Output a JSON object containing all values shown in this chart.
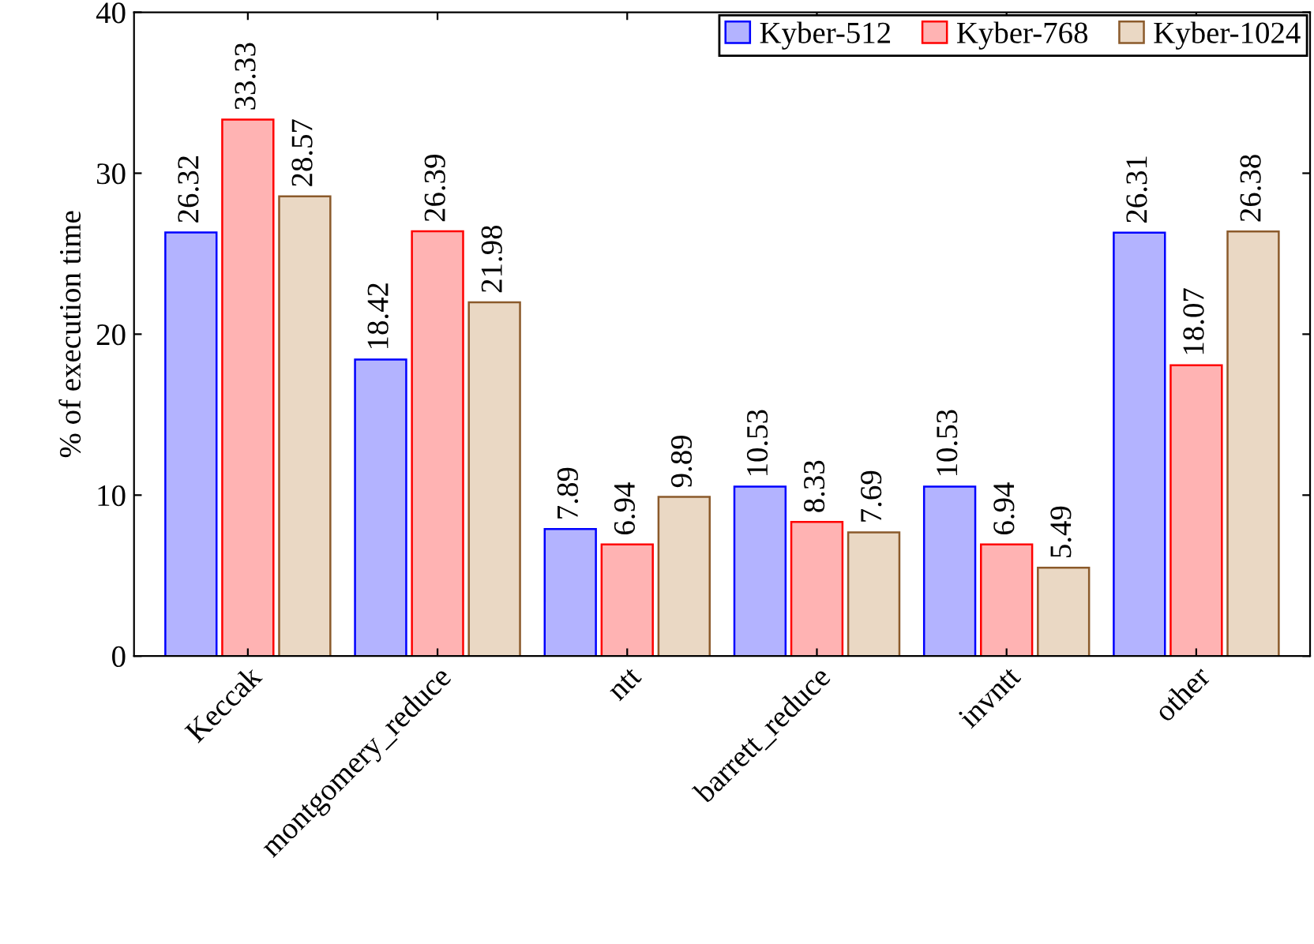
{
  "chart_data": {
    "type": "bar",
    "ylabel": "% of execution time",
    "categories": [
      "Keccak",
      "montgomery_reduce",
      "ntt",
      "barrett_reduce",
      "invntt",
      "other"
    ],
    "series": [
      {
        "name": "Kyber-512",
        "color": "#b3b3ff",
        "values": [
          26.32,
          18.42,
          7.89,
          10.53,
          10.53,
          26.31
        ]
      },
      {
        "name": "Kyber-768",
        "color": "#ffb3b3",
        "values": [
          33.33,
          26.39,
          6.94,
          8.33,
          6.94,
          18.07
        ]
      },
      {
        "name": "Kyber-1024",
        "color": "#ead8c4",
        "values": [
          28.57,
          21.98,
          9.89,
          7.69,
          5.49,
          26.38
        ]
      }
    ],
    "ylim": [
      0,
      40
    ],
    "yticks": [
      0,
      10,
      20,
      30,
      40
    ],
    "grid": false,
    "legend": "top right",
    "data_labels": true
  }
}
